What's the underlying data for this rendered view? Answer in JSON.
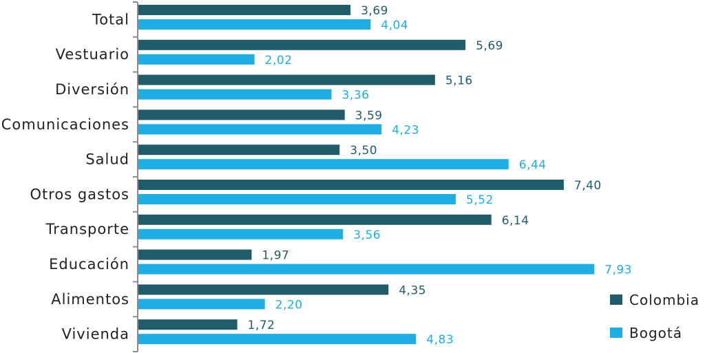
{
  "chart_data": {
    "type": "bar",
    "orientation": "horizontal",
    "categories": [
      "Total",
      "Vestuario",
      "Diversión",
      "Comunicaciones",
      "Salud",
      "Otros gastos",
      "Transporte",
      "Educación",
      "Alimentos",
      "Vivienda"
    ],
    "series": [
      {
        "name": "Colombia",
        "color": "#215c6b",
        "values": [
          3.69,
          5.69,
          5.16,
          3.59,
          3.5,
          7.4,
          6.14,
          1.97,
          4.35,
          1.72
        ],
        "labels": [
          "3,69",
          "5,69",
          "5,16",
          "3,59",
          "3,50",
          "7,40",
          "6,14",
          "1,97",
          "4,35",
          "1,72"
        ]
      },
      {
        "name": "Bogotá",
        "color": "#1fade3",
        "values": [
          4.04,
          2.02,
          3.36,
          4.23,
          6.44,
          5.52,
          3.56,
          7.93,
          2.2,
          4.83
        ],
        "labels": [
          "4,04",
          "2,02",
          "3,36",
          "4,23",
          "6,44",
          "5,52",
          "3,56",
          "7,93",
          "2,20",
          "4,83"
        ]
      }
    ],
    "title": "",
    "xlabel": "",
    "ylabel": "",
    "xlim": [
      0,
      9.8
    ],
    "grid": false,
    "legend_position": "bottom-right"
  }
}
